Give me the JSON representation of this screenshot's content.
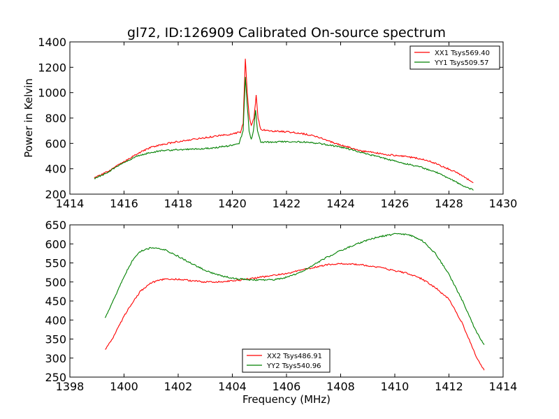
{
  "chart_data": [
    {
      "type": "line",
      "title": "gl72, ID:126909 Calibrated On-source spectrum",
      "xlabel": "",
      "ylabel": "Power in Kelvin",
      "xlim": [
        1414,
        1430
      ],
      "ylim": [
        200,
        1400
      ],
      "xticks": [
        "1414",
        "1416",
        "1418",
        "1420",
        "1422",
        "1424",
        "1426",
        "1428",
        "1430"
      ],
      "yticks": [
        "200",
        "400",
        "600",
        "800",
        "1000",
        "1200",
        "1400"
      ],
      "legend_position": "top-right",
      "series": [
        {
          "name": "XX1 Tsys569.40",
          "color": "#ff0000",
          "points": [
            [
              1414.9,
              325
            ],
            [
              1415.5,
              390
            ],
            [
              1416,
              455
            ],
            [
              1416.5,
              520
            ],
            [
              1417,
              570
            ],
            [
              1417.5,
              595
            ],
            [
              1418,
              615
            ],
            [
              1418.5,
              630
            ],
            [
              1419,
              645
            ],
            [
              1419.5,
              660
            ],
            [
              1420,
              675
            ],
            [
              1420.3,
              690
            ],
            [
              1420.4,
              760
            ],
            [
              1420.48,
              1270
            ],
            [
              1420.55,
              1000
            ],
            [
              1420.62,
              820
            ],
            [
              1420.7,
              740
            ],
            [
              1420.8,
              800
            ],
            [
              1420.88,
              980
            ],
            [
              1420.95,
              800
            ],
            [
              1421.05,
              710
            ],
            [
              1421.3,
              700
            ],
            [
              1421.8,
              695
            ],
            [
              1422.3,
              685
            ],
            [
              1422.8,
              670
            ],
            [
              1423.3,
              640
            ],
            [
              1423.8,
              600
            ],
            [
              1424.3,
              570
            ],
            [
              1424.8,
              540
            ],
            [
              1425.3,
              525
            ],
            [
              1425.8,
              510
            ],
            [
              1426.3,
              500
            ],
            [
              1426.8,
              485
            ],
            [
              1427.3,
              460
            ],
            [
              1427.8,
              415
            ],
            [
              1428.3,
              370
            ],
            [
              1428.9,
              290
            ]
          ]
        },
        {
          "name": "YY1 Tsys509.57",
          "color": "#008000",
          "points": [
            [
              1414.9,
              320
            ],
            [
              1415.5,
              385
            ],
            [
              1416,
              450
            ],
            [
              1416.5,
              500
            ],
            [
              1417,
              530
            ],
            [
              1417.5,
              545
            ],
            [
              1418,
              550
            ],
            [
              1418.5,
              555
            ],
            [
              1419,
              560
            ],
            [
              1419.5,
              570
            ],
            [
              1420,
              585
            ],
            [
              1420.25,
              600
            ],
            [
              1420.4,
              700
            ],
            [
              1420.48,
              1120
            ],
            [
              1420.55,
              900
            ],
            [
              1420.62,
              700
            ],
            [
              1420.7,
              630
            ],
            [
              1420.78,
              700
            ],
            [
              1420.86,
              860
            ],
            [
              1420.93,
              700
            ],
            [
              1421.05,
              610
            ],
            [
              1421.5,
              610
            ],
            [
              1422,
              615
            ],
            [
              1422.5,
              612
            ],
            [
              1423,
              605
            ],
            [
              1423.5,
              590
            ],
            [
              1424,
              570
            ],
            [
              1424.5,
              545
            ],
            [
              1425,
              515
            ],
            [
              1425.5,
              490
            ],
            [
              1426,
              460
            ],
            [
              1426.5,
              435
            ],
            [
              1427,
              410
            ],
            [
              1427.5,
              375
            ],
            [
              1428,
              325
            ],
            [
              1428.5,
              270
            ],
            [
              1428.9,
              230
            ]
          ]
        }
      ]
    },
    {
      "type": "line",
      "title": "",
      "xlabel": "Frequency (MHz)",
      "ylabel": "",
      "xlim": [
        1398,
        1414
      ],
      "ylim": [
        250,
        650
      ],
      "xticks": [
        "1398",
        "1400",
        "1402",
        "1404",
        "1406",
        "1408",
        "1410",
        "1412",
        "1414"
      ],
      "yticks": [
        "250",
        "300",
        "350",
        "400",
        "450",
        "500",
        "550",
        "600",
        "650"
      ],
      "legend_position": "bottom-center",
      "series": [
        {
          "name": "XX2 Tsys486.91",
          "color": "#ff0000",
          "points": [
            [
              1399.3,
              322
            ],
            [
              1399.6,
              355
            ],
            [
              1400,
              410
            ],
            [
              1400.3,
              445
            ],
            [
              1400.6,
              475
            ],
            [
              1401,
              498
            ],
            [
              1401.5,
              508
            ],
            [
              1402,
              507
            ],
            [
              1402.5,
              503
            ],
            [
              1403,
              500
            ],
            [
              1403.5,
              500
            ],
            [
              1404,
              503
            ],
            [
              1404.5,
              507
            ],
            [
              1405,
              512
            ],
            [
              1405.5,
              517
            ],
            [
              1406,
              522
            ],
            [
              1406.5,
              530
            ],
            [
              1407,
              538
            ],
            [
              1407.5,
              545
            ],
            [
              1408,
              548
            ],
            [
              1408.5,
              547
            ],
            [
              1409,
              543
            ],
            [
              1409.5,
              537
            ],
            [
              1410,
              530
            ],
            [
              1410.5,
              522
            ],
            [
              1411,
              508
            ],
            [
              1411.5,
              485
            ],
            [
              1412,
              455
            ],
            [
              1412.5,
              390
            ],
            [
              1413,
              305
            ],
            [
              1413.3,
              268
            ]
          ]
        },
        {
          "name": "YY2 Tsys540.96",
          "color": "#008000",
          "points": [
            [
              1399.3,
              405
            ],
            [
              1399.6,
              450
            ],
            [
              1400,
              515
            ],
            [
              1400.3,
              555
            ],
            [
              1400.6,
              580
            ],
            [
              1401,
              590
            ],
            [
              1401.5,
              585
            ],
            [
              1402,
              567
            ],
            [
              1402.5,
              548
            ],
            [
              1403,
              530
            ],
            [
              1403.5,
              518
            ],
            [
              1404,
              510
            ],
            [
              1404.5,
              506
            ],
            [
              1405,
              505
            ],
            [
              1405.5,
              506
            ],
            [
              1406,
              512
            ],
            [
              1406.5,
              525
            ],
            [
              1407,
              545
            ],
            [
              1407.5,
              565
            ],
            [
              1408,
              582
            ],
            [
              1408.5,
              597
            ],
            [
              1409,
              610
            ],
            [
              1409.5,
              620
            ],
            [
              1410,
              626
            ],
            [
              1410.5,
              625
            ],
            [
              1411,
              610
            ],
            [
              1411.5,
              575
            ],
            [
              1412,
              520
            ],
            [
              1412.5,
              450
            ],
            [
              1413,
              370
            ],
            [
              1413.3,
              335
            ]
          ]
        }
      ]
    }
  ]
}
